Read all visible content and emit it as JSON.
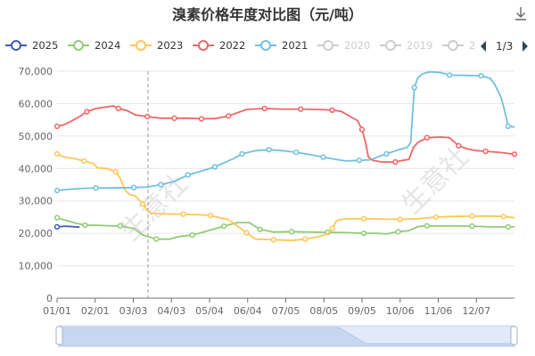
{
  "chart_data": {
    "type": "line",
    "title": "溴素价格年度对比图（元/吨）",
    "x": [
      "01/01",
      "02/01",
      "03/03",
      "04/03",
      "05/04",
      "06/04",
      "07/05",
      "08/05",
      "09/05",
      "10/06",
      "11/06",
      "12/07"
    ],
    "ylim": [
      0,
      70000
    ],
    "yticks": [
      0,
      10000,
      20000,
      30000,
      40000,
      50000,
      60000,
      70000
    ],
    "ytick_labels": [
      "0",
      "10,000",
      "20,000",
      "30,000",
      "40,000",
      "50,000",
      "60,000",
      "70,000"
    ],
    "grid": true,
    "legend_position": "top",
    "series": [
      {
        "name": "2025",
        "color": "#3c5bb5",
        "active": true,
        "points": [
          [
            0,
            22000
          ],
          [
            10,
            22200
          ],
          [
            20,
            22000
          ],
          [
            25,
            21900
          ]
        ]
      },
      {
        "name": "2024",
        "color": "#91cc75",
        "active": true,
        "points": [
          [
            0,
            24800
          ],
          [
            10,
            24000
          ],
          [
            20,
            23200
          ],
          [
            31,
            22500
          ],
          [
            40,
            22500
          ],
          [
            50,
            22400
          ],
          [
            60,
            22300
          ],
          [
            70,
            22300
          ],
          [
            85,
            21500
          ],
          [
            95,
            19500
          ],
          [
            110,
            18200
          ],
          [
            125,
            18200
          ],
          [
            135,
            19000
          ],
          [
            150,
            19500
          ],
          [
            160,
            20200
          ],
          [
            170,
            21000
          ],
          [
            185,
            22200
          ],
          [
            200,
            23300
          ],
          [
            213,
            23300
          ],
          [
            225,
            21200
          ],
          [
            240,
            20400
          ],
          [
            260,
            20500
          ],
          [
            280,
            20400
          ],
          [
            300,
            20300
          ],
          [
            320,
            20200
          ],
          [
            340,
            20000
          ],
          [
            355,
            20000
          ],
          [
            365,
            19800
          ],
          [
            378,
            20500
          ],
          [
            390,
            20800
          ],
          [
            400,
            22100
          ],
          [
            410,
            22300
          ],
          [
            430,
            22300
          ],
          [
            460,
            22200
          ],
          [
            480,
            22000
          ],
          [
            500,
            22000
          ],
          [
            507,
            22000
          ]
        ]
      },
      {
        "name": "2023",
        "color": "#fac858",
        "active": true,
        "points": [
          [
            0,
            44500
          ],
          [
            8,
            43500
          ],
          [
            20,
            43000
          ],
          [
            30,
            42300
          ],
          [
            40,
            41500
          ],
          [
            45,
            40200
          ],
          [
            55,
            40000
          ],
          [
            65,
            39000
          ],
          [
            70,
            37000
          ],
          [
            75,
            33500
          ],
          [
            80,
            32000
          ],
          [
            87,
            31500
          ],
          [
            95,
            29000
          ],
          [
            100,
            27000
          ],
          [
            105,
            26200
          ],
          [
            120,
            26000
          ],
          [
            140,
            25900
          ],
          [
            160,
            25700
          ],
          [
            170,
            25500
          ],
          [
            190,
            24200
          ],
          [
            210,
            20200
          ],
          [
            220,
            18200
          ],
          [
            240,
            18000
          ],
          [
            260,
            17800
          ],
          [
            275,
            18200
          ],
          [
            290,
            19000
          ],
          [
            300,
            19800
          ],
          [
            305,
            21500
          ],
          [
            310,
            24000
          ],
          [
            320,
            24500
          ],
          [
            340,
            24500
          ],
          [
            360,
            24400
          ],
          [
            380,
            24300
          ],
          [
            400,
            24500
          ],
          [
            420,
            25000
          ],
          [
            440,
            25200
          ],
          [
            460,
            25300
          ],
          [
            480,
            25300
          ],
          [
            495,
            25200
          ],
          [
            507,
            24800
          ]
        ]
      },
      {
        "name": "2022",
        "color": "#ee6666",
        "active": true,
        "points": [
          [
            0,
            53000
          ],
          [
            8,
            53500
          ],
          [
            15,
            54500
          ],
          [
            25,
            56000
          ],
          [
            33,
            57500
          ],
          [
            43,
            58500
          ],
          [
            55,
            59000
          ],
          [
            62,
            59300
          ],
          [
            68,
            58500
          ],
          [
            78,
            57800
          ],
          [
            87,
            56500
          ],
          [
            100,
            56000
          ],
          [
            115,
            55500
          ],
          [
            130,
            55500
          ],
          [
            145,
            55500
          ],
          [
            160,
            55300
          ],
          [
            175,
            55400
          ],
          [
            190,
            56200
          ],
          [
            210,
            58200
          ],
          [
            230,
            58500
          ],
          [
            250,
            58300
          ],
          [
            270,
            58300
          ],
          [
            290,
            58200
          ],
          [
            305,
            58000
          ],
          [
            315,
            57600
          ],
          [
            325,
            56000
          ],
          [
            333,
            54800
          ],
          [
            338,
            52000
          ],
          [
            342,
            48000
          ],
          [
            345,
            43500
          ],
          [
            350,
            42500
          ],
          [
            360,
            42000
          ],
          [
            375,
            42000
          ],
          [
            383,
            42500
          ],
          [
            390,
            42800
          ],
          [
            395,
            46500
          ],
          [
            400,
            48000
          ],
          [
            410,
            49500
          ],
          [
            425,
            49700
          ],
          [
            435,
            49500
          ],
          [
            445,
            47000
          ],
          [
            455,
            46000
          ],
          [
            465,
            45500
          ],
          [
            475,
            45300
          ],
          [
            490,
            45000
          ],
          [
            507,
            44400
          ]
        ]
      },
      {
        "name": "2021",
        "color": "#73c0de",
        "active": true,
        "points": [
          [
            0,
            33200
          ],
          [
            10,
            33500
          ],
          [
            25,
            33800
          ],
          [
            43,
            34000
          ],
          [
            60,
            34000
          ],
          [
            85,
            34100
          ],
          [
            100,
            34300
          ],
          [
            115,
            35000
          ],
          [
            130,
            36000
          ],
          [
            145,
            38000
          ],
          [
            160,
            39200
          ],
          [
            175,
            40500
          ],
          [
            195,
            43000
          ],
          [
            205,
            44500
          ],
          [
            220,
            45500
          ],
          [
            235,
            45800
          ],
          [
            250,
            45500
          ],
          [
            265,
            45000
          ],
          [
            280,
            44300
          ],
          [
            295,
            43500
          ],
          [
            305,
            43000
          ],
          [
            320,
            42300
          ],
          [
            335,
            42500
          ],
          [
            348,
            42700
          ],
          [
            355,
            43500
          ],
          [
            365,
            44500
          ],
          [
            378,
            45700
          ],
          [
            388,
            46500
          ],
          [
            392,
            48000
          ],
          [
            394,
            57000
          ],
          [
            396,
            65000
          ],
          [
            400,
            68000
          ],
          [
            405,
            69200
          ],
          [
            413,
            69800
          ],
          [
            425,
            69600
          ],
          [
            435,
            68800
          ],
          [
            450,
            68700
          ],
          [
            470,
            68600
          ],
          [
            480,
            67800
          ],
          [
            485,
            66000
          ],
          [
            492,
            62000
          ],
          [
            495,
            59000
          ],
          [
            500,
            53000
          ],
          [
            507,
            52800
          ]
        ]
      },
      {
        "name": "2020",
        "color": "#cccccc",
        "active": false,
        "points": []
      },
      {
        "name": "2019",
        "color": "#cccccc",
        "active": false,
        "points": []
      }
    ]
  },
  "legend_truncated_item": "2",
  "legend_page": "1/3",
  "watermark": "生意社",
  "toolbar": {
    "download_icon": "download-icon"
  }
}
